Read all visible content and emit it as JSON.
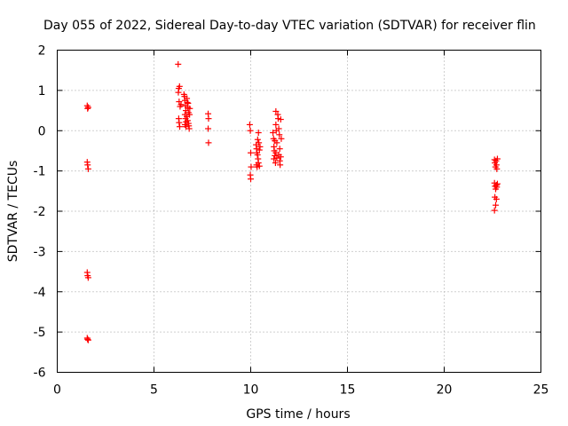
{
  "chart_data": {
    "type": "scatter",
    "title": "Day 055 of 2022, Sidereal Day-to-day VTEC variation (SDTVAR) for receiver flin",
    "xlabel": "GPS time / hours",
    "ylabel": "SDTVAR / TECUs",
    "xlim": [
      0,
      25
    ],
    "ylim": [
      -6,
      2
    ],
    "xticks": [
      0,
      5,
      10,
      15,
      20,
      25
    ],
    "xtick_labels": [
      "0",
      "5",
      "10",
      "15",
      "20",
      "25"
    ],
    "yticks": [
      2,
      1,
      0,
      -1,
      -2,
      -3,
      -4,
      -5,
      -6
    ],
    "ytick_labels": [
      "2",
      "1",
      "0",
      "-1",
      "-2",
      "-3",
      "-4",
      "-5",
      "-6"
    ],
    "grid": true,
    "marker": "+",
    "color": "#ff0000",
    "series": [
      {
        "name": "SDTVAR",
        "points": [
          [
            1.55,
            0.62
          ],
          [
            1.57,
            0.55
          ],
          [
            1.6,
            0.58
          ],
          [
            1.55,
            -0.78
          ],
          [
            1.57,
            -0.85
          ],
          [
            1.6,
            -0.95
          ],
          [
            1.55,
            -3.52
          ],
          [
            1.57,
            -3.6
          ],
          [
            1.6,
            -3.65
          ],
          [
            1.55,
            -5.15
          ],
          [
            1.57,
            -5.18
          ],
          [
            1.6,
            -5.2
          ],
          [
            6.25,
            1.65
          ],
          [
            6.28,
            1.05
          ],
          [
            6.32,
            1.1
          ],
          [
            6.26,
            0.95
          ],
          [
            6.3,
            0.72
          ],
          [
            6.35,
            0.6
          ],
          [
            6.28,
            0.3
          ],
          [
            6.3,
            0.2
          ],
          [
            6.33,
            0.1
          ],
          [
            6.4,
            0.65
          ],
          [
            6.55,
            0.9
          ],
          [
            6.58,
            0.85
          ],
          [
            6.6,
            0.75
          ],
          [
            6.62,
            0.62
          ],
          [
            6.65,
            0.5
          ],
          [
            6.6,
            0.4
          ],
          [
            6.63,
            0.3
          ],
          [
            6.66,
            0.22
          ],
          [
            6.6,
            0.15
          ],
          [
            6.65,
            0.1
          ],
          [
            6.7,
            0.8
          ],
          [
            6.72,
            0.7
          ],
          [
            6.75,
            0.58
          ],
          [
            6.78,
            0.45
          ],
          [
            6.7,
            0.35
          ],
          [
            6.74,
            0.25
          ],
          [
            6.78,
            0.18
          ],
          [
            6.8,
            0.12
          ],
          [
            6.82,
            0.05
          ],
          [
            6.76,
            0.68
          ],
          [
            6.85,
            0.55
          ],
          [
            6.84,
            0.4
          ],
          [
            7.8,
            0.42
          ],
          [
            7.82,
            0.3
          ],
          [
            7.8,
            0.05
          ],
          [
            7.82,
            -0.3
          ],
          [
            9.95,
            0.15
          ],
          [
            9.98,
            0.0
          ],
          [
            10.0,
            -0.55
          ],
          [
            10.02,
            -0.9
          ],
          [
            9.98,
            -1.1
          ],
          [
            10.0,
            -1.2
          ],
          [
            10.28,
            -0.35
          ],
          [
            10.3,
            -0.45
          ],
          [
            10.32,
            -0.55
          ],
          [
            10.35,
            -0.6
          ],
          [
            10.3,
            -0.85
          ],
          [
            10.33,
            -0.9
          ],
          [
            10.36,
            -0.22
          ],
          [
            10.4,
            -0.05
          ],
          [
            10.42,
            -0.3
          ],
          [
            10.45,
            -0.48
          ],
          [
            10.4,
            -0.8
          ],
          [
            10.45,
            -0.88
          ],
          [
            10.48,
            -0.4
          ],
          [
            10.38,
            -0.7
          ],
          [
            11.15,
            -0.05
          ],
          [
            11.18,
            -0.2
          ],
          [
            11.2,
            -0.4
          ],
          [
            11.22,
            -0.5
          ],
          [
            11.25,
            -0.62
          ],
          [
            11.2,
            -0.7
          ],
          [
            11.28,
            -0.8
          ],
          [
            11.3,
            0.48
          ],
          [
            11.3,
            0.15
          ],
          [
            11.32,
            0.0
          ],
          [
            11.35,
            -0.3
          ],
          [
            11.3,
            -0.55
          ],
          [
            11.35,
            -0.68
          ],
          [
            11.4,
            0.4
          ],
          [
            11.42,
            0.3
          ],
          [
            11.45,
            0.05
          ],
          [
            11.48,
            -0.1
          ],
          [
            11.5,
            -0.45
          ],
          [
            11.45,
            -0.6
          ],
          [
            11.5,
            -0.75
          ],
          [
            11.52,
            -0.85
          ],
          [
            11.55,
            0.28
          ],
          [
            11.58,
            -0.2
          ],
          [
            11.55,
            -0.65
          ],
          [
            11.25,
            -0.25
          ],
          [
            22.6,
            -0.72
          ],
          [
            22.62,
            -0.8
          ],
          [
            22.65,
            -0.9
          ],
          [
            22.6,
            -1.3
          ],
          [
            22.63,
            -1.38
          ],
          [
            22.66,
            -1.45
          ],
          [
            22.68,
            -0.75
          ],
          [
            22.7,
            -0.85
          ],
          [
            22.72,
            -0.95
          ],
          [
            22.7,
            -1.35
          ],
          [
            22.72,
            -1.4
          ],
          [
            22.62,
            -1.65
          ],
          [
            22.66,
            -1.85
          ],
          [
            22.6,
            -1.98
          ],
          [
            22.7,
            -1.7
          ],
          [
            22.75,
            -0.7
          ],
          [
            22.75,
            -1.32
          ]
        ]
      }
    ]
  }
}
